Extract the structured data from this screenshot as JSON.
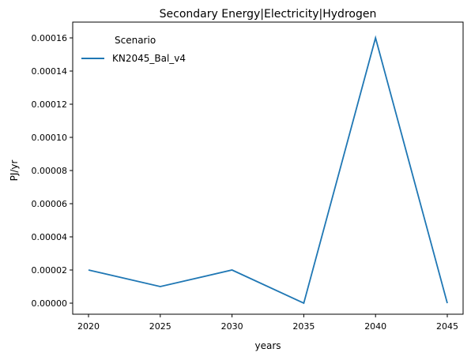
{
  "chart_data": {
    "type": "line",
    "title": "Secondary Energy|Electricity|Hydrogen",
    "xlabel": "years",
    "ylabel": "PJ/yr",
    "x": [
      2020,
      2025,
      2030,
      2035,
      2040,
      2045
    ],
    "series": [
      {
        "name": "KN2045_Bal_v4",
        "color": "#1f77b4",
        "values": [
          2e-05,
          1e-05,
          2e-05,
          0.0,
          0.00016,
          0.0
        ]
      }
    ],
    "xticks": [
      "2020",
      "2025",
      "2030",
      "2035",
      "2040",
      "2045"
    ],
    "yticks": [
      "0.00000",
      "0.00002",
      "0.00004",
      "0.00006",
      "0.00008",
      "0.00010",
      "0.00012",
      "0.00014",
      "0.00016"
    ],
    "ytick_values": [
      0,
      2e-05,
      4e-05,
      6e-05,
      8e-05,
      0.0001,
      0.00012,
      0.00014,
      0.00016
    ],
    "legend": {
      "title": "Scenario",
      "placement": "upper-left"
    },
    "grid": false
  }
}
